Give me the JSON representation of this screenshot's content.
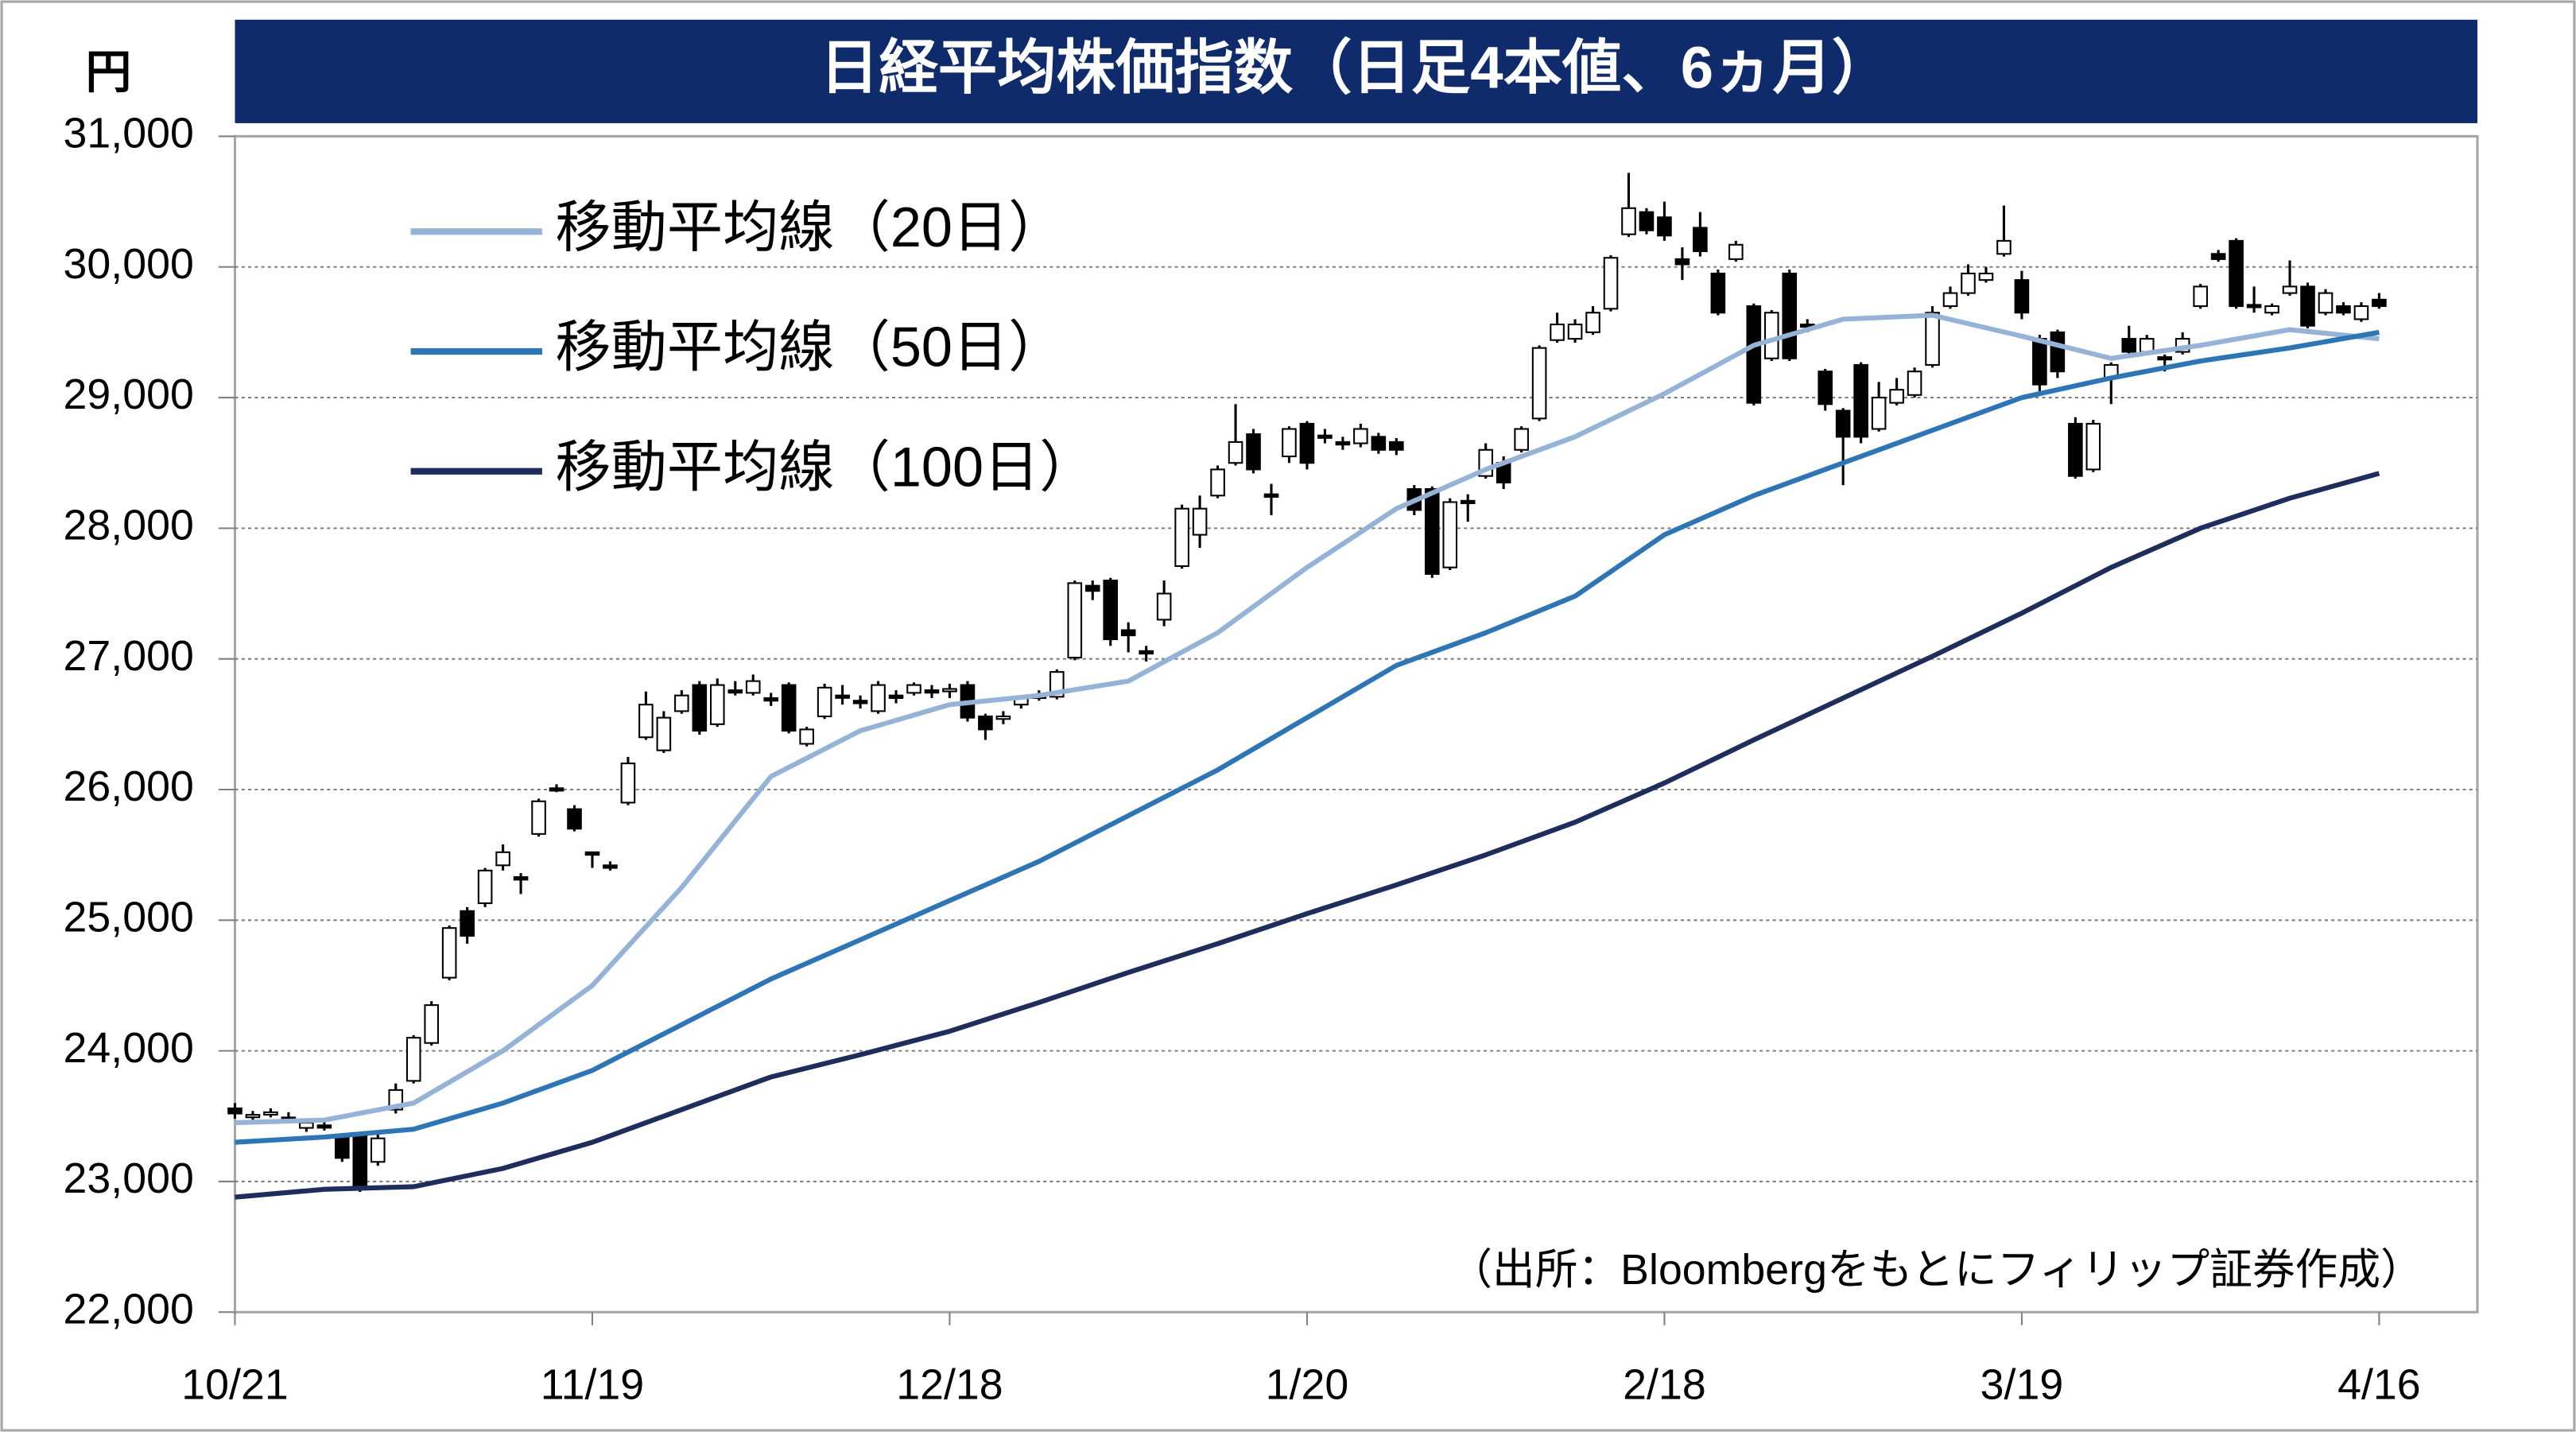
{
  "chart_data": {
    "type": "candlestick",
    "title": "日経平均株価指数（日足4本値、6ヵ月）",
    "y_unit": "円",
    "note": "（出所：Bloombergをもとにフィリップ証券作成）",
    "up_color": "#ffffff",
    "down_color": "#000000",
    "grid": true,
    "legend": "upper left",
    "xlim": [
      0,
      125.5
    ],
    "xticks": [
      {
        "value": 0,
        "label": "10/21"
      },
      {
        "value": 20,
        "label": "11/19"
      },
      {
        "value": 40,
        "label": "12/18"
      },
      {
        "value": 60,
        "label": "1/20"
      },
      {
        "value": 80,
        "label": "2/18"
      },
      {
        "value": 100,
        "label": "3/19"
      },
      {
        "value": 120,
        "label": "4/16"
      }
    ],
    "ylim": [
      22000,
      31000
    ],
    "yticks": [
      {
        "value": 22000,
        "label": "22,000"
      },
      {
        "value": 23000,
        "label": "23,000"
      },
      {
        "value": 24000,
        "label": "24,000"
      },
      {
        "value": 25000,
        "label": "25,000"
      },
      {
        "value": 26000,
        "label": "26,000"
      },
      {
        "value": 27000,
        "label": "27,000"
      },
      {
        "value": 28000,
        "label": "28,000"
      },
      {
        "value": 29000,
        "label": "29,000"
      },
      {
        "value": 30000,
        "label": "30,000"
      },
      {
        "value": 31000,
        "label": "31,000"
      }
    ],
    "open": [
      23560,
      23500,
      23520,
      23490,
      23410,
      23430,
      23340,
      23350,
      23150,
      23550,
      23770,
      24060,
      24560,
      25070,
      25130,
      25420,
      25330,
      25660,
      26010,
      25850,
      25520,
      25420,
      25900,
      26400,
      26300,
      26600,
      26800,
      26500,
      26760,
      26740,
      26700,
      26800,
      26350,
      26560,
      26720,
      26680,
      26600,
      26720,
      26740,
      26760,
      26760,
      26800,
      26560,
      26540,
      26650,
      26700,
      26710,
      27010,
      27560,
      27600,
      27220,
      27060,
      27300,
      27710,
      27950,
      28250,
      28500,
      28720,
      28260,
      28550,
      28800,
      28710,
      28660,
      28650,
      28700,
      28660,
      28300,
      28300,
      27700,
      28210,
      28400,
      28500,
      28600,
      28840,
      29440,
      29450,
      29500,
      29680,
      30250,
      30420,
      30380,
      30060,
      30300,
      29950,
      30060,
      29700,
      29300,
      29950,
      29560,
      29200,
      28900,
      29250,
      28760,
      28960,
      29020,
      29250,
      29700,
      29800,
      29900,
      30100,
      29900,
      29450,
      29500,
      28800,
      28450,
      29150,
      29450,
      29350,
      29310,
      29350,
      29700,
      30100,
      30200,
      29710,
      29650,
      29800,
      29850,
      29650,
      29700,
      29600,
      29750
    ],
    "high": [
      23600,
      23540,
      23560,
      23530,
      23470,
      23460,
      23370,
      23380,
      23360,
      23750,
      24120,
      24380,
      24960,
      25100,
      25400,
      25580,
      25360,
      25930,
      26040,
      25880,
      25520,
      25450,
      26250,
      26750,
      26600,
      26760,
      26830,
      26850,
      26830,
      26880,
      26740,
      26820,
      26480,
      26810,
      26800,
      26720,
      26830,
      26760,
      26820,
      26800,
      26810,
      26830,
      26580,
      26600,
      26720,
      26760,
      26920,
      27600,
      27600,
      27620,
      27280,
      27100,
      27600,
      28180,
      28250,
      28480,
      28950,
      28760,
      28340,
      28780,
      28820,
      28760,
      28700,
      28800,
      28730,
      28690,
      28330,
      28320,
      28230,
      28260,
      28650,
      28550,
      28780,
      29400,
      29650,
      29600,
      29700,
      30090,
      30720,
      30450,
      30500,
      30150,
      30420,
      29980,
      30200,
      29720,
      29670,
      29980,
      29600,
      29220,
      28920,
      29270,
      29120,
      29150,
      29230,
      29700,
      29850,
      30020,
      30000,
      30470,
      29970,
      29480,
      29520,
      28850,
      28830,
      29270,
      29550,
      29480,
      29330,
      29500,
      29870,
      30130,
      30220,
      29850,
      29720,
      30050,
      29880,
      29830,
      29730,
      29730,
      29800
    ],
    "low": [
      23480,
      23470,
      23490,
      23450,
      23380,
      23390,
      23150,
      22920,
      23120,
      23520,
      23750,
      24040,
      24540,
      24820,
      25100,
      25380,
      25200,
      25640,
      25980,
      25680,
      25400,
      25380,
      25880,
      26380,
      26280,
      26580,
      26420,
      26480,
      26720,
      26720,
      26640,
      26430,
      26330,
      26540,
      26650,
      26620,
      26580,
      26660,
      26720,
      26700,
      26700,
      26520,
      26380,
      26500,
      26620,
      26680,
      26690,
      26990,
      27450,
      27100,
      27050,
      26980,
      27250,
      27690,
      27850,
      28230,
      28480,
      28420,
      28100,
      28500,
      28450,
      28650,
      28600,
      28620,
      28570,
      28560,
      28100,
      27620,
      27680,
      28050,
      28380,
      28300,
      28580,
      28820,
      29420,
      29420,
      29480,
      29660,
      30230,
      30250,
      30200,
      29900,
      30080,
      29630,
      30040,
      28940,
      29280,
      29280,
      29500,
      28900,
      28330,
      28650,
      28740,
      28940,
      29000,
      29230,
      29680,
      29780,
      29880,
      30080,
      29600,
      29050,
      29150,
      28380,
      28430,
      28950,
      29330,
      29330,
      29200,
      29330,
      29680,
      30040,
      29680,
      29650,
      29630,
      29780,
      29530,
      29630,
      29630,
      29580,
      29680
    ],
    "close": [
      23520,
      23510,
      23530,
      23480,
      23450,
      23420,
      23180,
      22950,
      23330,
      23700,
      24100,
      24350,
      24940,
      24880,
      25380,
      25520,
      25310,
      25910,
      26000,
      25700,
      25500,
      25400,
      26200,
      26650,
      26550,
      26720,
      26450,
      26800,
      26750,
      26830,
      26680,
      26450,
      26460,
      26780,
      26710,
      26660,
      26800,
      26700,
      26800,
      26750,
      26770,
      26550,
      26460,
      26560,
      26700,
      26720,
      26900,
      27580,
      27520,
      27150,
      27180,
      27040,
      27500,
      28150,
      28150,
      28450,
      28660,
      28450,
      28240,
      28760,
      28500,
      28700,
      28640,
      28760,
      28600,
      28600,
      28140,
      27650,
      28200,
      28200,
      28600,
      28350,
      28760,
      29380,
      29560,
      29560,
      29650,
      30070,
      30450,
      30280,
      30240,
      30020,
      30120,
      29650,
      30170,
      28960,
      29650,
      29300,
      29550,
      28950,
      28700,
      28700,
      29000,
      29060,
      29200,
      29650,
      29800,
      29950,
      29950,
      30200,
      29650,
      29100,
      29200,
      28400,
      28800,
      29250,
      29350,
      29450,
      29300,
      29450,
      29850,
      30060,
      29700,
      29700,
      29700,
      29850,
      29550,
      29800,
      29650,
      29700,
      29700
    ],
    "series": [
      {
        "name": "移動平均線（20日）",
        "color": "#95b3d7",
        "x": [
          0,
          5,
          10,
          15,
          18,
          20,
          25,
          30,
          35,
          40,
          45,
          50,
          55,
          60,
          65,
          70,
          75,
          80,
          85,
          90,
          95,
          100,
          105,
          110,
          115,
          120
        ],
        "values": [
          23450,
          23470,
          23600,
          24000,
          24300,
          24500,
          25250,
          26100,
          26450,
          26650,
          26720,
          26830,
          27200,
          27700,
          28150,
          28450,
          28700,
          29030,
          29400,
          29600,
          29630,
          29470,
          29300,
          29400,
          29520,
          29450
        ]
      },
      {
        "name": "移動平均線（50日）",
        "color": "#2e75b6",
        "x": [
          0,
          5,
          10,
          15,
          20,
          25,
          30,
          35,
          40,
          45,
          50,
          55,
          60,
          65,
          70,
          75,
          80,
          85,
          90,
          95,
          100,
          105,
          110,
          115,
          120
        ],
        "values": [
          23300,
          23340,
          23400,
          23600,
          23850,
          24200,
          24550,
          24850,
          25150,
          25450,
          25800,
          26150,
          26550,
          26950,
          27200,
          27480,
          27950,
          28250,
          28500,
          28750,
          29000,
          29150,
          29280,
          29380,
          29500
        ]
      },
      {
        "name": "移動平均線（100日）",
        "color": "#1f2d5c",
        "x": [
          0,
          5,
          10,
          15,
          20,
          25,
          30,
          35,
          40,
          45,
          50,
          55,
          60,
          65,
          70,
          75,
          80,
          85,
          90,
          95,
          100,
          105,
          110,
          115,
          120
        ],
        "values": [
          22880,
          22940,
          22960,
          23100,
          23300,
          23550,
          23800,
          23970,
          24150,
          24370,
          24600,
          24820,
          25050,
          25270,
          25500,
          25750,
          26050,
          26380,
          26700,
          27020,
          27350,
          27700,
          28000,
          28230,
          28420
        ]
      }
    ]
  }
}
